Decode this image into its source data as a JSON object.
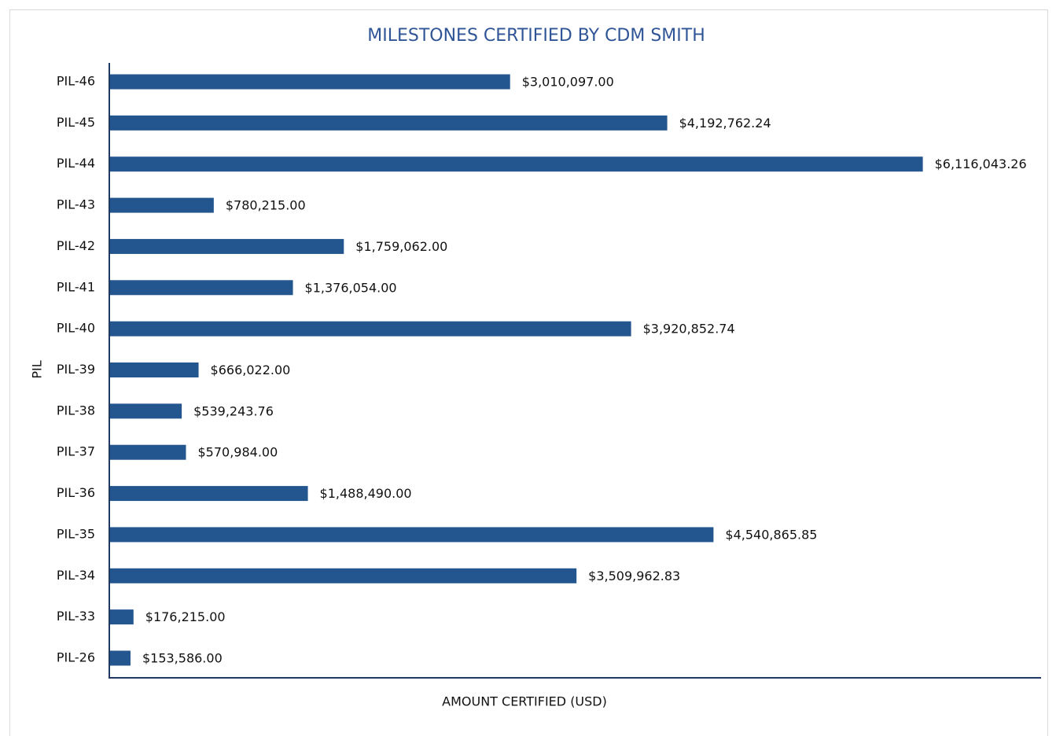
{
  "chart_data": {
    "type": "bar",
    "orientation": "horizontal",
    "title": "MILESTONES CERTIFIED BY CDM SMITH",
    "x_label": "AMOUNT CERTIFIED (USD)",
    "y_label": "PIL",
    "categories": [
      "PIL-46",
      "PIL-45",
      "PIL-44",
      "PIL-43",
      "PIL-42",
      "PIL-41",
      "PIL-40",
      "PIL-39",
      "PIL-38",
      "PIL-37",
      "PIL-36",
      "PIL-35",
      "PIL-34",
      "PIL-33",
      "PIL-26"
    ],
    "values": [
      3010097.0,
      4192762.24,
      6116043.26,
      780215.0,
      1759062.0,
      1376054.0,
      3920852.74,
      666022.0,
      539243.76,
      570984.0,
      1488490.0,
      4540865.85,
      3509962.83,
      176215.0,
      153586.0
    ],
    "value_labels": [
      "$3,010,097.00",
      "$4,192,762.24",
      "$6,116,043.26",
      "$780,215.00",
      "$1,759,062.00",
      "$1,376,054.00",
      "$3,920,852.74",
      "$666,022.00",
      "$539,243.76",
      "$570,984.00",
      "$1,488,490.00",
      "$4,540,865.85",
      "$3,509,962.83",
      "$176,215.00",
      "$153,586.00"
    ],
    "color": "#23558f",
    "xlim": [
      0,
      7000000
    ]
  }
}
